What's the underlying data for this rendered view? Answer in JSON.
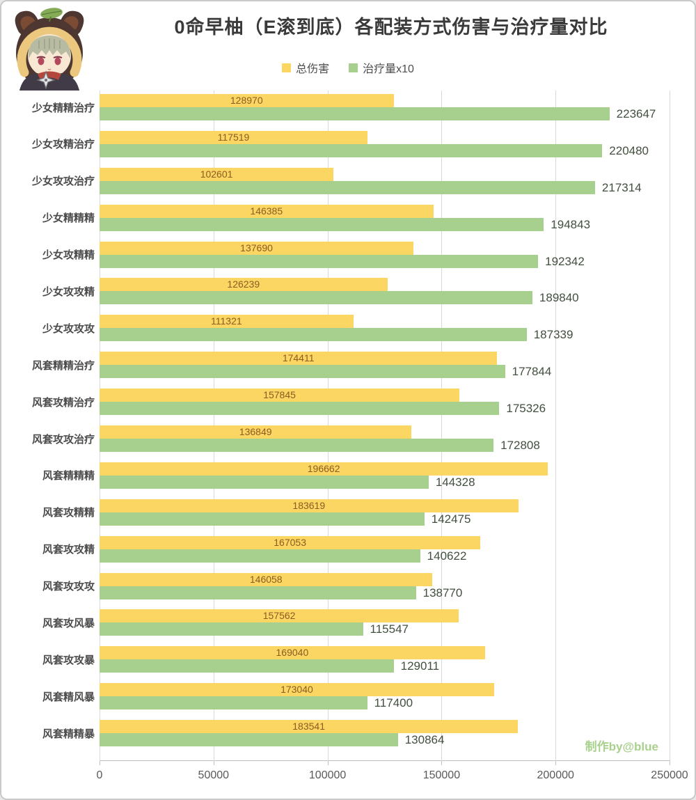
{
  "page": {
    "background": "#ffffff",
    "border_color": "#c9c9c9"
  },
  "header": {
    "title": "0命早柚（E滚到底）各配装方式伤害与治疗量对比",
    "avatar": "sayu-tanuki-hood-portrait"
  },
  "legend": {
    "items": [
      {
        "label": "总伤害",
        "color": "#FBD663"
      },
      {
        "label": "治疗量x10",
        "color": "#A7CF8D"
      }
    ]
  },
  "watermark": {
    "text": "制作by@blue",
    "color": "#A9D18E"
  },
  "chart_data": {
    "type": "bar",
    "orientation": "horizontal",
    "title": "0命早柚（E滚到底）各配装方式伤害与治疗量对比",
    "categories": [
      "少女精精治疗",
      "少女攻精治疗",
      "少女攻攻治疗",
      "少女精精精",
      "少女攻精精",
      "少女攻攻精",
      "少女攻攻攻",
      "风套精精治疗",
      "风套攻精治疗",
      "风套攻攻治疗",
      "风套精精精",
      "风套攻精精",
      "风套攻攻精",
      "风套攻攻攻",
      "风套攻风暴",
      "风套攻攻暴",
      "风套精风暴",
      "风套精精暴"
    ],
    "series": [
      {
        "name": "总伤害",
        "color": "#FBD663",
        "label_color": "#8D5B21",
        "label_position": "inside-center",
        "values": [
          128970,
          117519,
          102601,
          146385,
          137690,
          126239,
          111321,
          174411,
          157845,
          136849,
          196662,
          183619,
          167053,
          146058,
          157562,
          169040,
          173040,
          183541
        ]
      },
      {
        "name": "治疗量x10",
        "color": "#A7CF8D",
        "label_color": "#42503F",
        "label_position": "outside-right",
        "values": [
          223647,
          220480,
          217314,
          194843,
          192342,
          189840,
          187339,
          177844,
          175326,
          172808,
          144328,
          142475,
          140622,
          138770,
          115547,
          129011,
          117400,
          130864
        ]
      }
    ],
    "xlim": [
      0,
      250000
    ],
    "x_ticks": [
      0,
      50000,
      100000,
      150000,
      200000,
      250000
    ],
    "grid": "vertical-gridlines",
    "legend_position": "top-center",
    "ylabel": "",
    "xlabel": ""
  }
}
